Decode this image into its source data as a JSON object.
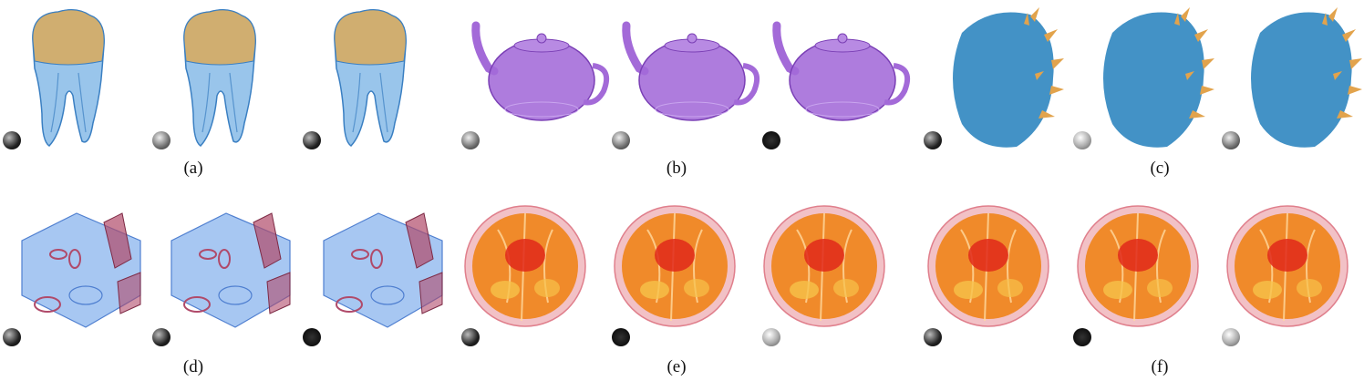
{
  "captions": {
    "a": "(a)",
    "b": "(b)",
    "c": "(c)",
    "d": "(d)",
    "e": "(e)",
    "f": "(f)"
  },
  "colors": {
    "tooth_body": "#7fb6e6",
    "tooth_crown": "#d9a95b",
    "teapot": "#a36ad8",
    "spiky_body": "#2f86c0",
    "spiky_tips": "#e2a34c",
    "engine_body": "#8ab4ee",
    "engine_parts": "#b04a6a",
    "orange_fill": "#f08a2a",
    "orange_core": "#e0281a",
    "orange_rind": "#f2c1c6"
  },
  "light_spheres": {
    "a": [
      "dark",
      "medium",
      "dark"
    ],
    "b": [
      "medium",
      "medium",
      "black"
    ],
    "c": [
      "dark",
      "light",
      "medium"
    ],
    "d": [
      "dark",
      "dark",
      "black"
    ],
    "e": [
      "dark",
      "black",
      "light"
    ],
    "f": [
      "dark",
      "black",
      "light"
    ]
  }
}
